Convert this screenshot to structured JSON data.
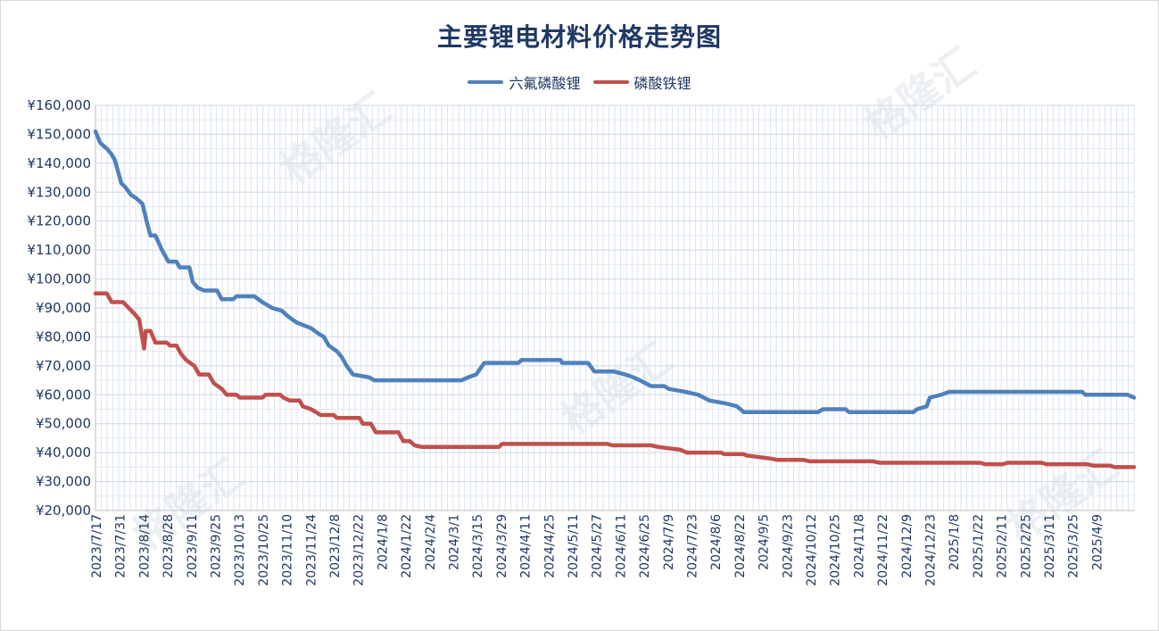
{
  "watermark_text": "格隆汇",
  "chart_data": {
    "type": "line",
    "title": "主要锂电材料价格走势图",
    "xlabel": "",
    "ylabel": "",
    "ylim": [
      20000,
      160000
    ],
    "yticks": [
      20000,
      30000,
      40000,
      50000,
      60000,
      70000,
      80000,
      90000,
      100000,
      110000,
      120000,
      130000,
      140000,
      150000,
      160000
    ],
    "ytick_labels": [
      "¥20,000",
      "¥30,000",
      "¥40,000",
      "¥50,000",
      "¥60,000",
      "¥70,000",
      "¥80,000",
      "¥90,000",
      "¥100,000",
      "¥110,000",
      "¥120,000",
      "¥130,000",
      "¥140,000",
      "¥150,000",
      "¥160,000"
    ],
    "x_range": [
      "2023/7/17",
      "2025/4/18"
    ],
    "xtick_labels": [
      "2023/7/17",
      "2023/7/31",
      "2023/8/14",
      "2023/8/28",
      "2023/9/11",
      "2023/9/25",
      "2023/10/13",
      "2023/10/25",
      "2023/11/10",
      "2023/11/24",
      "2023/12/8",
      "2023/12/22",
      "2024/1/8",
      "2024/1/22",
      "2024/2/4",
      "2024/3/1",
      "2024/3/15",
      "2024/3/29",
      "2024/4/11",
      "2024/4/25",
      "2024/5/11",
      "2024/5/27",
      "2024/6/11",
      "2024/6/25",
      "2024/7/9",
      "2024/7/23",
      "2024/8/6",
      "2024/8/22",
      "2024/9/5",
      "2024/9/23",
      "2024/10/12",
      "2024/10/25",
      "2024/11/8",
      "2024/11/22",
      "2024/12/9",
      "2024/12/23",
      "2025/1/8",
      "2025/1/22",
      "2025/2/11",
      "2025/2/25",
      "2025/3/11",
      "2025/3/25",
      "2025/4/9"
    ],
    "grid": true,
    "legend_position": "top-center",
    "series": [
      {
        "name": "六氟磷酸锂",
        "color": "#4f81bd",
        "points": [
          [
            "2023/7/17",
            151000
          ],
          [
            "2023/7/20",
            147000
          ],
          [
            "2023/7/24",
            145000
          ],
          [
            "2023/7/27",
            143000
          ],
          [
            "2023/7/29",
            141000
          ],
          [
            "2023/8/2",
            133000
          ],
          [
            "2023/8/4",
            132000
          ],
          [
            "2023/8/8",
            129000
          ],
          [
            "2023/8/11",
            128000
          ],
          [
            "2023/8/15",
            126000
          ],
          [
            "2023/8/18",
            119000
          ],
          [
            "2023/8/20",
            115000
          ],
          [
            "2023/8/23",
            115000
          ],
          [
            "2023/8/27",
            110000
          ],
          [
            "2023/8/31",
            106000
          ],
          [
            "2023/9/5",
            106000
          ],
          [
            "2023/9/7",
            104000
          ],
          [
            "2023/9/13",
            104000
          ],
          [
            "2023/9/15",
            99000
          ],
          [
            "2023/9/18",
            97000
          ],
          [
            "2023/9/22",
            96000
          ],
          [
            "2023/9/30",
            96000
          ],
          [
            "2023/10/3",
            93000
          ],
          [
            "2023/10/10",
            93000
          ],
          [
            "2023/10/12",
            94000
          ],
          [
            "2023/10/23",
            94000
          ],
          [
            "2023/10/28",
            92000
          ],
          [
            "2023/11/3",
            90000
          ],
          [
            "2023/11/9",
            89000
          ],
          [
            "2023/11/13",
            87000
          ],
          [
            "2023/11/18",
            85000
          ],
          [
            "2023/11/27",
            83000
          ],
          [
            "2023/12/2",
            81000
          ],
          [
            "2023/12/5",
            80000
          ],
          [
            "2023/12/8",
            77000
          ],
          [
            "2023/12/13",
            75000
          ],
          [
            "2023/12/16",
            73000
          ],
          [
            "2023/12/19",
            70000
          ],
          [
            "2023/12/23",
            67000
          ],
          [
            "2024/1/2",
            66000
          ],
          [
            "2024/1/5",
            65000
          ],
          [
            "2024/2/28",
            65000
          ],
          [
            "2024/3/3",
            66000
          ],
          [
            "2024/3/8",
            67000
          ],
          [
            "2024/3/13",
            71000
          ],
          [
            "2024/4/3",
            71000
          ],
          [
            "2024/4/5",
            72000
          ],
          [
            "2024/4/29",
            72000
          ],
          [
            "2024/4/30",
            71000
          ],
          [
            "2024/5/16",
            71000
          ],
          [
            "2024/5/20",
            68000
          ],
          [
            "2024/6/1",
            68000
          ],
          [
            "2024/6/8",
            67000
          ],
          [
            "2024/6/13",
            66000
          ],
          [
            "2024/6/17",
            65000
          ],
          [
            "2024/6/24",
            63000
          ],
          [
            "2024/7/2",
            63000
          ],
          [
            "2024/7/5",
            62000
          ],
          [
            "2024/7/15",
            61000
          ],
          [
            "2024/7/23",
            60000
          ],
          [
            "2024/7/30",
            58000
          ],
          [
            "2024/8/9",
            57000
          ],
          [
            "2024/8/16",
            56000
          ],
          [
            "2024/8/20",
            54000
          ],
          [
            "2024/10/5",
            54000
          ],
          [
            "2024/10/8",
            55000
          ],
          [
            "2024/10/22",
            55000
          ],
          [
            "2024/10/24",
            54000
          ],
          [
            "2024/12/3",
            54000
          ],
          [
            "2024/12/5",
            55000
          ],
          [
            "2024/12/11",
            56000
          ],
          [
            "2024/12/13",
            59000
          ],
          [
            "2024/12/20",
            60000
          ],
          [
            "2024/12/25",
            61000
          ],
          [
            "2025/3/17",
            61000
          ],
          [
            "2025/3/19",
            60000
          ],
          [
            "2025/4/14",
            60000
          ],
          [
            "2025/4/18",
            59000
          ]
        ]
      },
      {
        "name": "磷酸铁锂",
        "color": "#c0504d",
        "points": [
          [
            "2023/7/17",
            95000
          ],
          [
            "2023/7/24",
            95000
          ],
          [
            "2023/7/27",
            92000
          ],
          [
            "2023/8/3",
            92000
          ],
          [
            "2023/8/10",
            88000
          ],
          [
            "2023/8/13",
            86000
          ],
          [
            "2023/8/16",
            76000
          ],
          [
            "2023/8/17",
            82000
          ],
          [
            "2023/8/20",
            82000
          ],
          [
            "2023/8/23",
            78000
          ],
          [
            "2023/8/30",
            78000
          ],
          [
            "2023/9/1",
            77000
          ],
          [
            "2023/9/5",
            77000
          ],
          [
            "2023/9/8",
            74000
          ],
          [
            "2023/9/11",
            72000
          ],
          [
            "2023/9/16",
            70000
          ],
          [
            "2023/9/19",
            67000
          ],
          [
            "2023/9/25",
            67000
          ],
          [
            "2023/9/28",
            64000
          ],
          [
            "2023/10/3",
            62000
          ],
          [
            "2023/10/6",
            60000
          ],
          [
            "2023/10/12",
            60000
          ],
          [
            "2023/10/14",
            59000
          ],
          [
            "2023/10/28",
            59000
          ],
          [
            "2023/10/30",
            60000
          ],
          [
            "2023/11/8",
            60000
          ],
          [
            "2023/11/10",
            59000
          ],
          [
            "2023/11/14",
            58000
          ],
          [
            "2023/11/20",
            58000
          ],
          [
            "2023/11/22",
            56000
          ],
          [
            "2023/11/27",
            55000
          ],
          [
            "2023/11/30",
            54000
          ],
          [
            "2023/12/3",
            53000
          ],
          [
            "2023/12/11",
            53000
          ],
          [
            "2023/12/13",
            52000
          ],
          [
            "2023/12/27",
            52000
          ],
          [
            "2023/12/29",
            50000
          ],
          [
            "2024/1/3",
            50000
          ],
          [
            "2024/1/6",
            47000
          ],
          [
            "2024/1/20",
            47000
          ],
          [
            "2024/1/23",
            44000
          ],
          [
            "2024/1/27",
            44000
          ],
          [
            "2024/1/30",
            42500
          ],
          [
            "2024/2/3",
            42000
          ],
          [
            "2024/3/22",
            42000
          ],
          [
            "2024/3/24",
            43000
          ],
          [
            "2024/5/28",
            43000
          ],
          [
            "2024/5/31",
            42500
          ],
          [
            "2024/6/24",
            42500
          ],
          [
            "2024/6/28",
            42000
          ],
          [
            "2024/7/5",
            41500
          ],
          [
            "2024/7/12",
            41000
          ],
          [
            "2024/7/16",
            40000
          ],
          [
            "2024/8/6",
            40000
          ],
          [
            "2024/8/8",
            39500
          ],
          [
            "2024/8/20",
            39500
          ],
          [
            "2024/8/22",
            39000
          ],
          [
            "2024/8/29",
            38500
          ],
          [
            "2024/9/5",
            38000
          ],
          [
            "2024/9/10",
            37500
          ],
          [
            "2024/9/26",
            37500
          ],
          [
            "2024/9/30",
            37000
          ],
          [
            "2024/11/8",
            37000
          ],
          [
            "2024/11/12",
            36500
          ],
          [
            "2025/1/13",
            36500
          ],
          [
            "2025/1/16",
            36000
          ],
          [
            "2025/1/27",
            36000
          ],
          [
            "2025/1/30",
            36500
          ],
          [
            "2025/2/20",
            36500
          ],
          [
            "2025/2/23",
            36000
          ],
          [
            "2025/3/20",
            36000
          ],
          [
            "2025/3/24",
            35500
          ],
          [
            "2025/4/3",
            35500
          ],
          [
            "2025/4/6",
            35000
          ],
          [
            "2025/4/18",
            35000
          ]
        ]
      }
    ]
  }
}
